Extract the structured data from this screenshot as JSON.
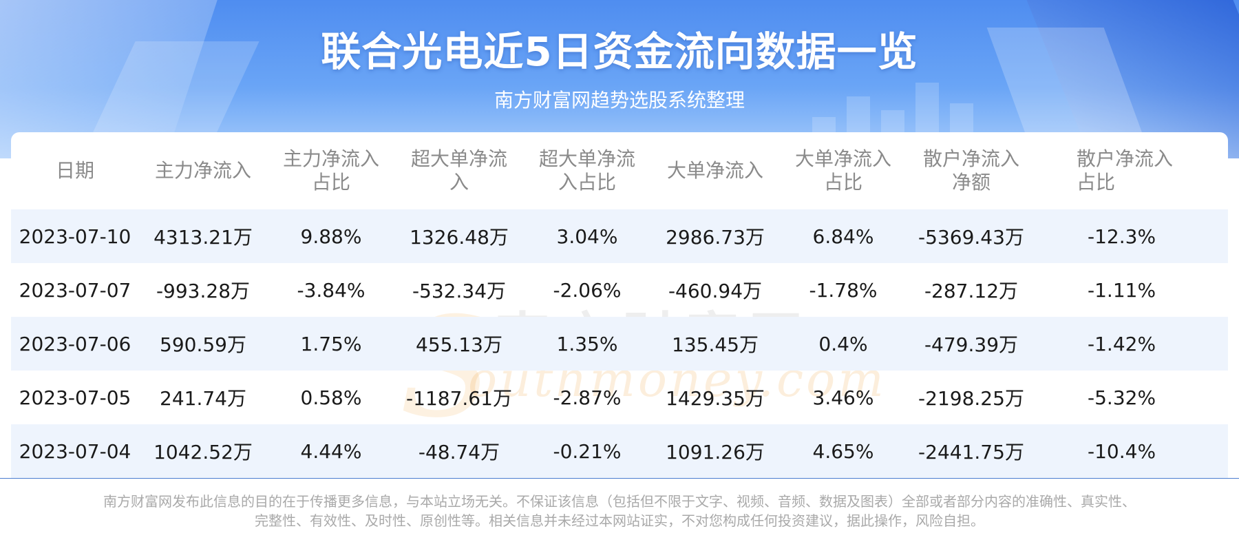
{
  "header": {
    "title": "联合光电近5日资金流向数据一览",
    "subtitle": "南方财富网趋势选股系统整理"
  },
  "watermark": {
    "cn": "南方财富网",
    "en": "outhmoney.com",
    "s": "S"
  },
  "table": {
    "headers": [
      [
        "日期"
      ],
      [
        "主力净流入"
      ],
      [
        "主力净流入",
        "占比"
      ],
      [
        "超大单净流",
        "入"
      ],
      [
        "超大单净流",
        "入占比"
      ],
      [
        "大单净流入"
      ],
      [
        "大单净流入",
        "占比"
      ],
      [
        "散户净流入",
        "净额"
      ],
      [
        "散户净流入",
        "占比"
      ]
    ],
    "rows": [
      [
        "2023-07-10",
        "4313.21万",
        "9.88%",
        "1326.48万",
        "3.04%",
        "2986.73万",
        "6.84%",
        "-5369.43万",
        "-12.3%"
      ],
      [
        "2023-07-07",
        "-993.28万",
        "-3.84%",
        "-532.34万",
        "-2.06%",
        "-460.94万",
        "-1.78%",
        "-287.12万",
        "-1.11%"
      ],
      [
        "2023-07-06",
        "590.59万",
        "1.75%",
        "455.13万",
        "1.35%",
        "135.45万",
        "0.4%",
        "-479.39万",
        "-1.42%"
      ],
      [
        "2023-07-05",
        "241.74万",
        "0.58%",
        "-1187.61万",
        "-2.87%",
        "1429.35万",
        "3.46%",
        "-2198.25万",
        "-5.32%"
      ],
      [
        "2023-07-04",
        "1042.52万",
        "4.44%",
        "-48.74万",
        "-0.21%",
        "1091.26万",
        "4.65%",
        "-2441.75万",
        "-10.4%"
      ]
    ]
  },
  "footer": {
    "disclaimer_line1": "南方财富网发布此信息的目的在于传播更多信息，与本站立场无关。不保证该信息（包括但不限于文字、视频、音频、数据及图表）全部或者部分内容的准确性、真实性、",
    "disclaimer_line2": "完整性、有效性、及时性、原创性等。相关信息并未经过本网站证实，不对您构成任何投资建议，据此操作，风险自担。"
  },
  "colors": {
    "header_gradient_top": "#4f8df0",
    "row_alt_background": "#eef4fd",
    "header_text": "#8a8a8a",
    "separator": "#4a7ccf"
  }
}
